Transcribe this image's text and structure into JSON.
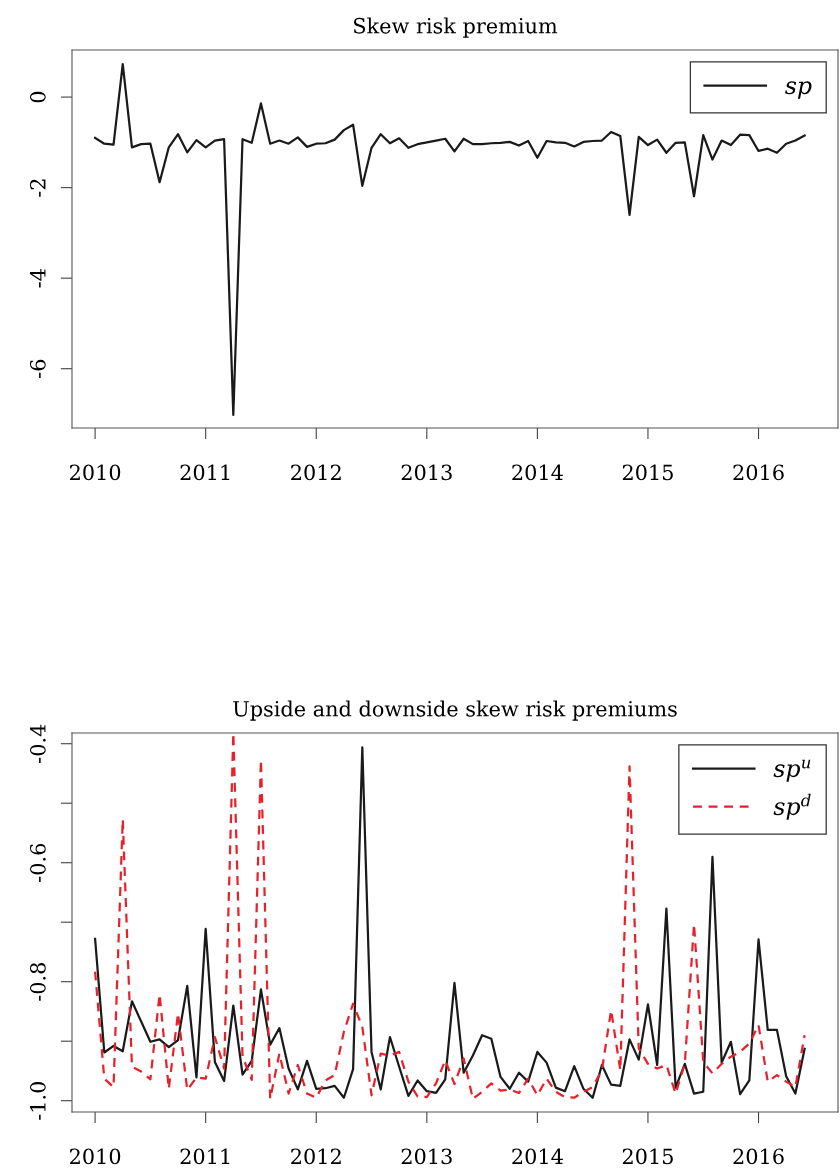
{
  "chart_data": [
    {
      "type": "line",
      "title": "Skew risk premium",
      "x": [
        "2010-01",
        "2010-02",
        "2010-03",
        "2010-04",
        "2010-05",
        "2010-06",
        "2010-07",
        "2010-08",
        "2010-09",
        "2010-10",
        "2010-11",
        "2010-12",
        "2011-01",
        "2011-02",
        "2011-03",
        "2011-04",
        "2011-05",
        "2011-06",
        "2011-07",
        "2011-08",
        "2011-09",
        "2011-10",
        "2011-11",
        "2011-12",
        "2012-01",
        "2012-02",
        "2012-03",
        "2012-04",
        "2012-05",
        "2012-06",
        "2012-07",
        "2012-08",
        "2012-09",
        "2012-10",
        "2012-11",
        "2012-12",
        "2013-01",
        "2013-02",
        "2013-03",
        "2013-04",
        "2013-05",
        "2013-06",
        "2013-07",
        "2013-08",
        "2013-09",
        "2013-10",
        "2013-11",
        "2013-12",
        "2014-01",
        "2014-02",
        "2014-03",
        "2014-04",
        "2014-05",
        "2014-06",
        "2014-07",
        "2014-08",
        "2014-09",
        "2014-10",
        "2014-11",
        "2014-12",
        "2015-01",
        "2015-02",
        "2015-03",
        "2015-04",
        "2015-05",
        "2015-06",
        "2015-07",
        "2015-08",
        "2015-09",
        "2015-10",
        "2015-11",
        "2015-12",
        "2016-01",
        "2016-02",
        "2016-03",
        "2016-04",
        "2016-05",
        "2016-06"
      ],
      "series": [
        {
          "name": "sp",
          "color": "#1a1a1a",
          "line_style": "solid",
          "values": [
            -0.9,
            -1.03,
            -1.05,
            0.73,
            -1.11,
            -1.04,
            -1.03,
            -1.88,
            -1.11,
            -0.82,
            -1.22,
            -0.95,
            -1.11,
            -0.96,
            -0.93,
            -7.02,
            -0.93,
            -1.01,
            -0.14,
            -1.03,
            -0.96,
            -1.03,
            -0.89,
            -1.1,
            -1.03,
            -1.02,
            -0.94,
            -0.73,
            -0.61,
            -1.96,
            -1.12,
            -0.82,
            -1.02,
            -0.91,
            -1.12,
            -1.04,
            -1.0,
            -0.96,
            -0.92,
            -1.2,
            -0.92,
            -1.04,
            -1.04,
            -1.02,
            -1.01,
            -0.99,
            -1.07,
            -0.97,
            -1.34,
            -0.97,
            -1.0,
            -1.01,
            -1.09,
            -0.99,
            -0.97,
            -0.96,
            -0.77,
            -0.86,
            -2.6,
            -0.88,
            -1.06,
            -0.94,
            -1.23,
            -1.01,
            -1.0,
            -2.19,
            -0.84,
            -1.38,
            -0.96,
            -1.06,
            -0.83,
            -0.84,
            -1.19,
            -1.14,
            -1.23,
            -1.03,
            -0.96,
            -0.85
          ]
        }
      ],
      "xlim": [
        "2009-10-16",
        "2016-09-20"
      ],
      "xticks": [
        "2010",
        "2011",
        "2012",
        "2013",
        "2014",
        "2015",
        "2016"
      ],
      "ylim": [
        -7.31,
        1.04
      ],
      "yticks": [
        0,
        -2,
        -4,
        -6
      ],
      "legend": "top right",
      "grid": false,
      "marker": "none"
    },
    {
      "type": "line",
      "title": "Upside and downside skew risk premiums",
      "x": [
        "2010-01",
        "2010-02",
        "2010-03",
        "2010-04",
        "2010-05",
        "2010-06",
        "2010-07",
        "2010-08",
        "2010-09",
        "2010-10",
        "2010-11",
        "2010-12",
        "2011-01",
        "2011-02",
        "2011-03",
        "2011-04",
        "2011-05",
        "2011-06",
        "2011-07",
        "2011-08",
        "2011-09",
        "2011-10",
        "2011-11",
        "2011-12",
        "2012-01",
        "2012-02",
        "2012-03",
        "2012-04",
        "2012-05",
        "2012-06",
        "2012-07",
        "2012-08",
        "2012-09",
        "2012-10",
        "2012-11",
        "2012-12",
        "2013-01",
        "2013-02",
        "2013-03",
        "2013-04",
        "2013-05",
        "2013-06",
        "2013-07",
        "2013-08",
        "2013-09",
        "2013-10",
        "2013-11",
        "2013-12",
        "2014-01",
        "2014-02",
        "2014-03",
        "2014-04",
        "2014-05",
        "2014-06",
        "2014-07",
        "2014-08",
        "2014-09",
        "2014-10",
        "2014-11",
        "2014-12",
        "2015-01",
        "2015-02",
        "2015-03",
        "2015-04",
        "2015-05",
        "2015-06",
        "2015-07",
        "2015-08",
        "2015-09",
        "2015-10",
        "2015-11",
        "2015-12",
        "2016-01",
        "2016-02",
        "2016-03",
        "2016-04",
        "2016-05",
        "2016-06"
      ],
      "series": [
        {
          "name": "sp$^{u}$",
          "color": "#1a1a1a",
          "line_style": "solid",
          "values": [
            -0.728,
            -0.919,
            -0.908,
            -0.917,
            -0.833,
            -0.867,
            -0.901,
            -0.897,
            -0.91,
            -0.898,
            -0.807,
            -0.961,
            -0.711,
            -0.935,
            -0.967,
            -0.84,
            -0.956,
            -0.933,
            -0.813,
            -0.906,
            -0.878,
            -0.946,
            -0.981,
            -0.933,
            -0.98,
            -0.979,
            -0.975,
            -0.995,
            -0.947,
            -0.406,
            -0.918,
            -0.981,
            -0.893,
            -0.943,
            -0.992,
            -0.966,
            -0.984,
            -0.987,
            -0.964,
            -0.802,
            -0.953,
            -0.924,
            -0.89,
            -0.896,
            -0.96,
            -0.98,
            -0.953,
            -0.968,
            -0.918,
            -0.936,
            -0.978,
            -0.984,
            -0.942,
            -0.98,
            -0.995,
            -0.94,
            -0.973,
            -0.975,
            -0.897,
            -0.931,
            -0.838,
            -0.94,
            -0.677,
            -0.978,
            -0.938,
            -0.988,
            -0.985,
            -0.59,
            -0.936,
            -0.901,
            -0.989,
            -0.966,
            -0.729,
            -0.881,
            -0.881,
            -0.959,
            -0.988,
            -0.913
          ]
        },
        {
          "name": "sp$^{d}$",
          "color": "#e8202a",
          "line_style": "dashed",
          "values": [
            -0.783,
            -0.963,
            -0.977,
            -0.527,
            -0.943,
            -0.951,
            -0.964,
            -0.821,
            -0.98,
            -0.853,
            -0.982,
            -0.961,
            -0.963,
            -0.893,
            -0.946,
            -0.382,
            -0.926,
            -0.965,
            -0.427,
            -0.997,
            -0.921,
            -0.988,
            -0.94,
            -0.988,
            -0.995,
            -0.966,
            -0.957,
            -0.884,
            -0.837,
            -0.876,
            -0.991,
            -0.921,
            -0.924,
            -0.918,
            -0.968,
            -0.993,
            -0.994,
            -0.971,
            -0.932,
            -0.972,
            -0.929,
            -0.997,
            -0.985,
            -0.971,
            -0.983,
            -0.981,
            -0.987,
            -0.963,
            -0.991,
            -0.963,
            -0.985,
            -0.994,
            -0.995,
            -0.985,
            -0.977,
            -0.949,
            -0.848,
            -0.949,
            -0.438,
            -0.912,
            -0.938,
            -0.946,
            -0.94,
            -0.988,
            -0.938,
            -0.703,
            -0.935,
            -0.954,
            -0.938,
            -0.926,
            -0.918,
            -0.904,
            -0.873,
            -0.968,
            -0.957,
            -0.968,
            -0.977,
            -0.89
          ]
        }
      ],
      "xlim": [
        "2009-10-16",
        "2016-09-20"
      ],
      "xticks": [
        "2010",
        "2011",
        "2012",
        "2013",
        "2014",
        "2015",
        "2016"
      ],
      "ylim": [
        -1.019,
        -0.382
      ],
      "yticks": [
        {
          "value": -1.0,
          "label": "-1.0"
        },
        {
          "value": -0.9,
          "label": null
        },
        -0.8,
        {
          "value": -0.7,
          "label": null
        },
        -0.6,
        {
          "value": -0.5,
          "label": null
        },
        -0.4
      ],
      "legend": "top right",
      "grid": false,
      "marker": "none"
    }
  ]
}
